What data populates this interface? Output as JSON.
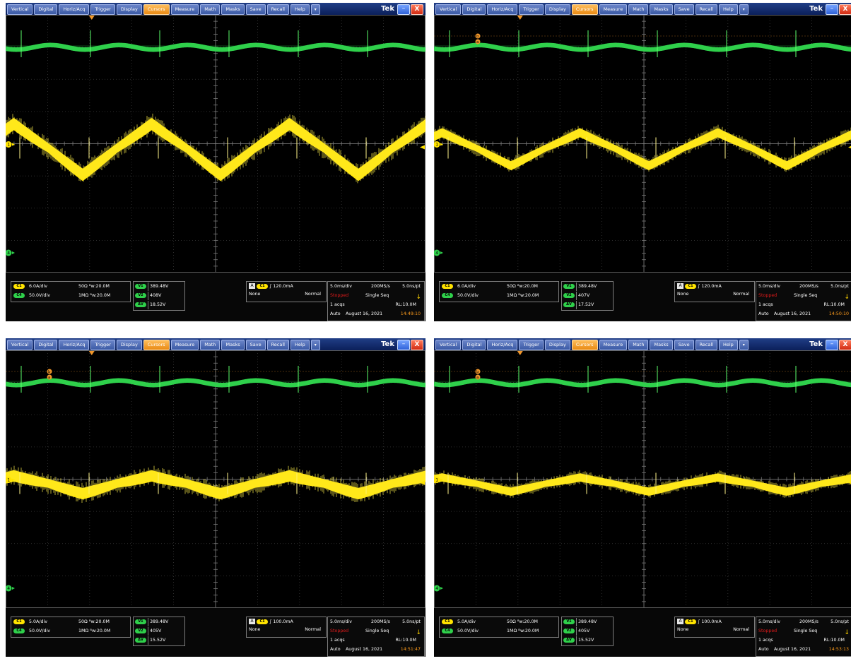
{
  "menu": {
    "items": [
      "Vertical",
      "Digital",
      "Horiz/Acq",
      "Trigger",
      "Display",
      "Cursors",
      "Measure",
      "Math",
      "Masks",
      "Save",
      "Recall",
      "Help"
    ],
    "active_index": 5,
    "more": "▾"
  },
  "brand": "Tek",
  "window": {
    "min": "–",
    "close": "X"
  },
  "colors": {
    "ch1": "#ffe300",
    "ch4": "#2fd04b",
    "active_menu": "#f0962a",
    "stopped": "#e01a1a",
    "time": "#ff9c1c"
  },
  "icons": {
    "trigger_marker": "triangle-down-icon",
    "ch1_marker": "ch1-ground-icon",
    "ch4_marker": "ch4-ground-icon",
    "seq_arrow": "arrow-down-icon"
  },
  "panels": [
    {
      "ch1": {
        "badge": "C1",
        "scale": "6.0A/div",
        "imp": "50Ω ᴮw:20.0M"
      },
      "ch4": {
        "badge": "C4",
        "scale": "50.0V/div",
        "imp": "1MΩ ᴮw:20.0M"
      },
      "cursors": [
        {
          "label": "V1",
          "value": "389.48V"
        },
        {
          "label": "V2",
          "value": "408V"
        },
        {
          "label": "ΔV",
          "value": "18.52V"
        }
      ],
      "trigger": {
        "a": "A",
        "ch": "C1",
        "level": "∫ 120.0mA",
        "source": "None",
        "mode": "Normal"
      },
      "acq": {
        "timebase": "5.0ms/div",
        "rate": "200MS/s",
        "res": "5.0ns/pt",
        "state": "Stopped",
        "seq": "Single Seq",
        "acqs": "1 acqs",
        "rl": "RL:10.0M",
        "auto": "Auto",
        "date": "August 16, 2021",
        "time": "14:49:10"
      },
      "show_ab_markers": false,
      "ch1_wave": {
        "amp": 1.0,
        "noise": 1.0
      }
    },
    {
      "ch1": {
        "badge": "C1",
        "scale": "6.0A/div",
        "imp": "50Ω ᴮw:20.0M"
      },
      "ch4": {
        "badge": "C4",
        "scale": "50.0V/div",
        "imp": "1MΩ ᴮw:20.0M"
      },
      "cursors": [
        {
          "label": "V1",
          "value": "389.48V"
        },
        {
          "label": "V2",
          "value": "407V"
        },
        {
          "label": "ΔV",
          "value": "17.52V"
        }
      ],
      "trigger": {
        "a": "A",
        "ch": "C1",
        "level": "∫ 120.0mA",
        "source": "None",
        "mode": "Normal"
      },
      "acq": {
        "timebase": "5.0ms/div",
        "rate": "200MS/s",
        "res": "5.0ns/pt",
        "state": "Stopped",
        "seq": "Single Seq",
        "acqs": "1 acqs",
        "rl": "RL:10.0M",
        "auto": "Auto",
        "date": "August 16, 2021",
        "time": "14:50:10"
      },
      "show_ab_markers": true,
      "ch1_wave": {
        "amp": 0.65,
        "noise": 0.6
      }
    },
    {
      "ch1": {
        "badge": "C1",
        "scale": "5.0A/div",
        "imp": "50Ω ᴮw:20.0M"
      },
      "ch4": {
        "badge": "C4",
        "scale": "50.0V/div",
        "imp": "1MΩ ᴮw:20.0M"
      },
      "cursors": [
        {
          "label": "V1",
          "value": "389.48V"
        },
        {
          "label": "V2",
          "value": "405V"
        },
        {
          "label": "ΔV",
          "value": "15.52V"
        }
      ],
      "trigger": {
        "a": "A",
        "ch": "C1",
        "level": "∫ 100.0mA",
        "source": "None",
        "mode": "Normal"
      },
      "acq": {
        "timebase": "5.0ms/div",
        "rate": "200MS/s",
        "res": "5.0ns/pt",
        "state": "Stopped",
        "seq": "Single Seq",
        "acqs": "1 acqs",
        "rl": "RL:10.0M",
        "auto": "Auto",
        "date": "August 16, 2021",
        "time": "14:51:47"
      },
      "show_ab_markers": true,
      "ch1_wave": {
        "amp": 0.35,
        "noise": 0.9
      }
    },
    {
      "ch1": {
        "badge": "C1",
        "scale": "5.0A/div",
        "imp": "50Ω ᴮw:20.0M"
      },
      "ch4": {
        "badge": "C4",
        "scale": "50.0V/div",
        "imp": "1MΩ ᴮw:20.0M"
      },
      "cursors": [
        {
          "label": "V1",
          "value": "389.48V"
        },
        {
          "label": "V2",
          "value": "405V"
        },
        {
          "label": "ΔV",
          "value": "15.52V"
        }
      ],
      "trigger": {
        "a": "A",
        "ch": "C1",
        "level": "∫ 100.0mA",
        "source": "None",
        "mode": "Normal"
      },
      "acq": {
        "timebase": "5.0ms/div",
        "rate": "200MS/s",
        "res": "5.0ns/pt",
        "state": "Stopped",
        "seq": "Single Seq",
        "acqs": "1 acqs",
        "rl": "RL:10.0M",
        "auto": "Auto",
        "date": "August 16, 2021",
        "time": "14:53:13"
      },
      "show_ab_markers": true,
      "ch1_wave": {
        "amp": 0.28,
        "noise": 0.5
      }
    }
  ],
  "cursor_markers": {
    "a": "a",
    "b": "b"
  },
  "ch_markers": {
    "ch1": "1",
    "ch4": "4"
  }
}
